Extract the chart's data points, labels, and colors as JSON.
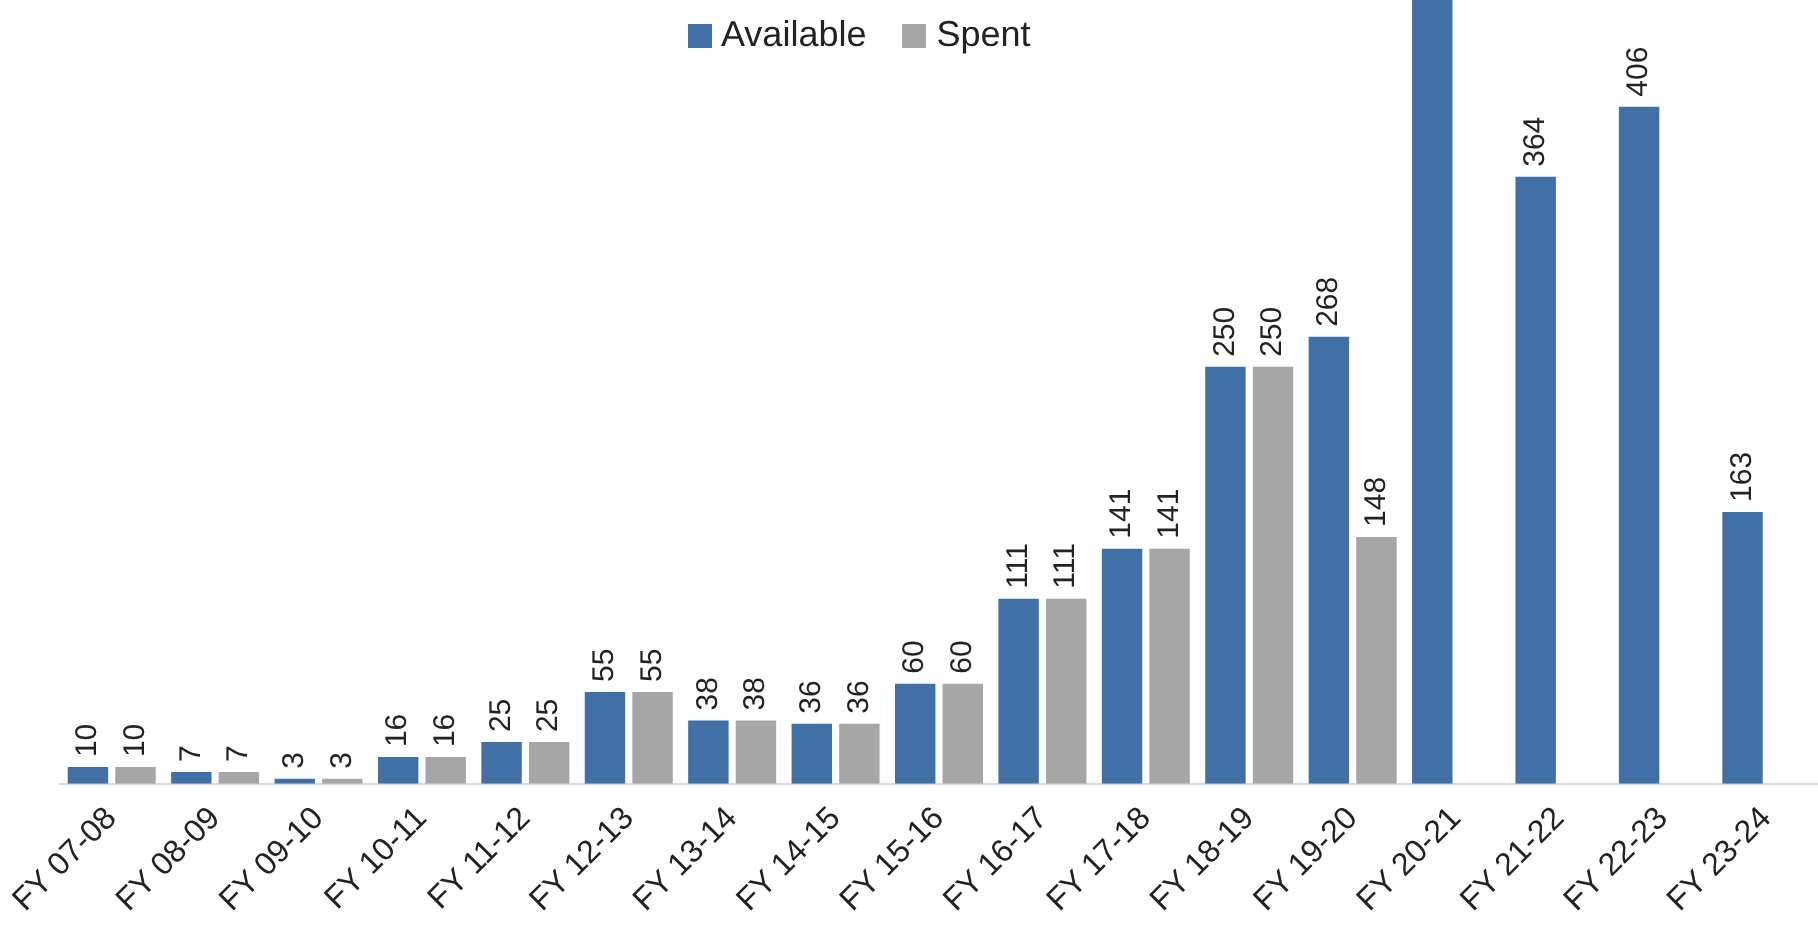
{
  "chart_data": {
    "type": "bar",
    "categories": [
      "FY 07-08",
      "FY 08-09",
      "FY 09-10",
      "FY 10-11",
      "FY 11-12",
      "FY 12-13",
      "FY 13-14",
      "FY 14-15",
      "FY 15-16",
      "FY 16-17",
      "FY 17-18",
      "FY 18-19",
      "FY 19-20",
      "FY 20-21",
      "FY 21-22",
      "FY 22-23",
      "FY 23-24"
    ],
    "series": [
      {
        "name": "Available",
        "color": "#4170a6",
        "values": [
          10,
          7,
          3,
          16,
          25,
          55,
          38,
          36,
          60,
          111,
          141,
          250,
          268,
          470,
          364,
          406,
          163
        ],
        "value_labels": [
          "10",
          "7",
          "3",
          "16",
          "25",
          "55",
          "38",
          "36",
          "60",
          "111",
          "141",
          "250",
          "268",
          null,
          "364",
          "406",
          "163"
        ]
      },
      {
        "name": "Spent",
        "color": "#a6a6a6",
        "values": [
          10,
          7,
          3,
          16,
          25,
          55,
          38,
          36,
          60,
          111,
          141,
          250,
          148,
          null,
          null,
          null,
          null
        ],
        "value_labels": [
          "10",
          "7",
          "3",
          "16",
          "25",
          "55",
          "38",
          "36",
          "60",
          "111",
          "141",
          "250",
          "148",
          null,
          null,
          null,
          null
        ]
      }
    ],
    "legend": "top"
  }
}
